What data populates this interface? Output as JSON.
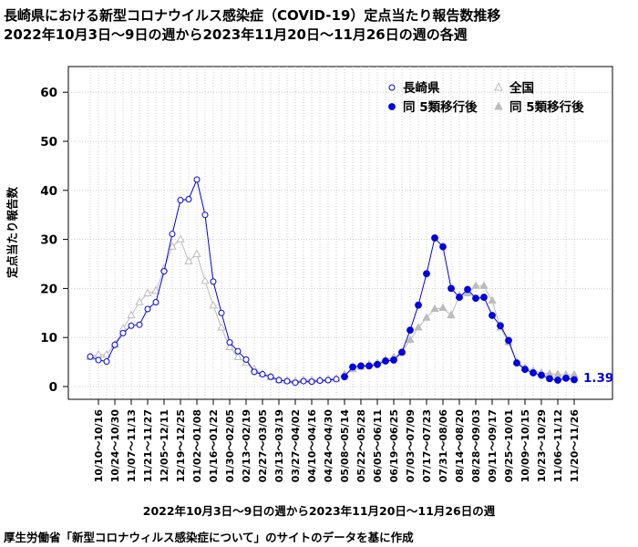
{
  "titles": {
    "line1": "長崎県における新型コロナウイルス感染症（COVID-19）定点当たり報告数推移",
    "line2": "2022年10月3日〜9日の週から2023年11月20日〜11月26日の週の各週"
  },
  "footer": {
    "source": "厚生労働省「新型コロナウィルス感染症について」のサイトのデータを基に作成"
  },
  "chart_data": {
    "type": "line",
    "ylabel": "定点当たり報告数",
    "xlabel": "2022年10月3日〜9日の週から2023年11月20日〜11月26日の週",
    "ylim": [
      0,
      65
    ],
    "yticks": [
      0,
      10,
      20,
      30,
      40,
      50,
      60
    ],
    "grid": true,
    "legend_position": "top-right",
    "x_tick_labels": [
      "10/10～10/16",
      "10/24～10/30",
      "11/07～11/13",
      "11/21～11/27",
      "12/05～12/11",
      "12/19～12/25",
      "01/02～01/08",
      "01/16～01/22",
      "01/30～02/05",
      "02/13～02/19",
      "02/27～03/05",
      "03/13～03/19",
      "03/27～04/02",
      "04/10～04/16",
      "04/24～04/30",
      "05/08～05/14",
      "05/22～05/28",
      "06/05～06/11",
      "06/19～06/25",
      "07/03～07/09",
      "07/17～07/23",
      "07/31～08/06",
      "08/14～08/20",
      "08/28～09/03",
      "09/11～09/17",
      "09/25～10/01",
      "10/09～10/15",
      "10/23～10/29",
      "11/06～11/12",
      "11/20～11/26"
    ],
    "last_value_label": "1.39",
    "series": [
      {
        "name": "長崎県",
        "marker": "open-circle",
        "color": "#0000e0",
        "values": [
          6.1,
          5.4,
          5.1,
          8.5,
          10.9,
          12.4,
          12.6,
          15.8,
          17.2,
          23.5,
          31.1,
          38.0,
          38.2,
          42.2,
          35.0,
          21.4,
          15.0,
          9.0,
          7.2,
          5.5,
          3.0,
          2.5,
          2.0,
          1.3,
          1.1,
          0.8,
          1.1,
          1.0,
          1.2,
          1.3,
          1.5
        ]
      },
      {
        "name": "全国",
        "marker": "open-triangle",
        "color": "#bbbbbb",
        "values": [
          6.0,
          6.5,
          6.5,
          8.6,
          11.8,
          14.5,
          17.2,
          19.0,
          19.5,
          24.0,
          28.5,
          30.0,
          25.5,
          27.0,
          21.5,
          16.5,
          12.0,
          8.0,
          6.0,
          4.8,
          3.5,
          2.6,
          1.9,
          1.3,
          1.2,
          1.1,
          1.3,
          1.3,
          1.4,
          1.5,
          1.6
        ]
      },
      {
        "name": "同 5類移行後",
        "marker": "filled-circle",
        "color": "#0000e0",
        "values": [
          2.0,
          4.0,
          4.2,
          4.2,
          4.5,
          5.2,
          5.4,
          7.0,
          11.5,
          16.6,
          23.0,
          30.3,
          28.5,
          20.0,
          18.2,
          19.8,
          18.0,
          18.2,
          14.5,
          12.4,
          9.4,
          4.8,
          3.5,
          2.8,
          2.3,
          1.6,
          1.3,
          1.7,
          1.39
        ]
      },
      {
        "name": "同 5類移行後",
        "marker": "filled-triangle",
        "color": "#bbbbbb",
        "values": [
          2.5,
          3.5,
          4.0,
          4.5,
          4.8,
          5.5,
          6.0,
          7.0,
          9.5,
          12.0,
          14.0,
          15.8,
          16.0,
          14.5,
          18.5,
          19.0,
          20.5,
          20.5,
          17.5,
          12.0,
          9.0,
          5.0,
          3.8,
          3.2,
          2.8,
          2.6,
          2.5,
          2.4,
          2.4
        ]
      }
    ]
  }
}
